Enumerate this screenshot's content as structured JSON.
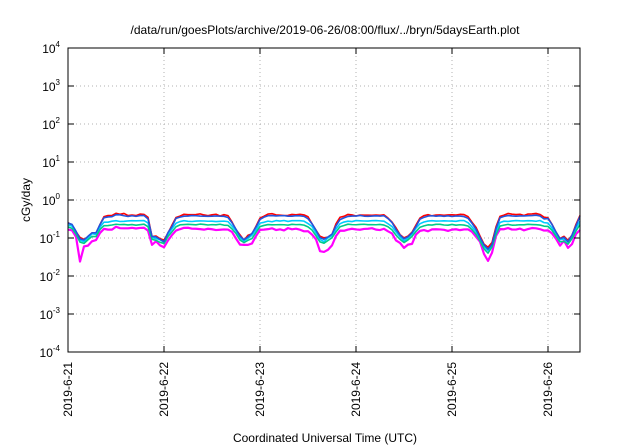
{
  "chart_data": {
    "type": "line",
    "title": "/data/run/goesPlots/archive/2019-06-26/08:00/flux/../bryn/5daysEarth.plot",
    "xlabel": "Coordinated Universal Time (UTC)",
    "ylabel": "cGy/day",
    "yscale": "log",
    "ylim": [
      0.0001,
      10000
    ],
    "xlim": [
      "2019-06-21 00:00",
      "2019-06-26 08:00"
    ],
    "grid": true,
    "legend": "none",
    "y_ticks": [
      {
        "value": 0.0001,
        "base": "10",
        "exp": "-4"
      },
      {
        "value": 0.001,
        "base": "10",
        "exp": "-3"
      },
      {
        "value": 0.01,
        "base": "10",
        "exp": "-2"
      },
      {
        "value": 0.1,
        "base": "10",
        "exp": "-1"
      },
      {
        "value": 1,
        "base": "10",
        "exp": "0"
      },
      {
        "value": 10,
        "base": "10",
        "exp": "1"
      },
      {
        "value": 100,
        "base": "10",
        "exp": "2"
      },
      {
        "value": 1000,
        "base": "10",
        "exp": "3"
      },
      {
        "value": 10000,
        "base": "10",
        "exp": "4"
      }
    ],
    "x_ticks": [
      "2019-6-21",
      "2019-6-22",
      "2019-6-23",
      "2019-6-24",
      "2019-6-25",
      "2019-6-26"
    ],
    "x": [
      "2019-06-21 00:00",
      "2019-06-21 01:00",
      "2019-06-21 02:00",
      "2019-06-21 03:00",
      "2019-06-21 04:00",
      "2019-06-21 05:00",
      "2019-06-21 06:00",
      "2019-06-21 07:00",
      "2019-06-21 08:00",
      "2019-06-21 09:00",
      "2019-06-21 10:00",
      "2019-06-21 11:00",
      "2019-06-21 12:00",
      "2019-06-21 13:00",
      "2019-06-21 14:00",
      "2019-06-21 15:00",
      "2019-06-21 16:00",
      "2019-06-21 17:00",
      "2019-06-21 18:00",
      "2019-06-21 19:00",
      "2019-06-21 20:00",
      "2019-06-21 21:00",
      "2019-06-21 22:00",
      "2019-06-21 23:00",
      "2019-06-22 00:00",
      "2019-06-22 01:00",
      "2019-06-22 02:00",
      "2019-06-22 03:00",
      "2019-06-22 04:00",
      "2019-06-22 05:00",
      "2019-06-22 06:00",
      "2019-06-22 07:00",
      "2019-06-22 08:00",
      "2019-06-22 09:00",
      "2019-06-22 10:00",
      "2019-06-22 11:00",
      "2019-06-22 12:00",
      "2019-06-22 13:00",
      "2019-06-22 14:00",
      "2019-06-22 15:00",
      "2019-06-22 16:00",
      "2019-06-22 17:00",
      "2019-06-22 18:00",
      "2019-06-22 19:00",
      "2019-06-22 20:00",
      "2019-06-22 21:00",
      "2019-06-22 22:00",
      "2019-06-22 23:00",
      "2019-06-23 00:00",
      "2019-06-23 01:00",
      "2019-06-23 02:00",
      "2019-06-23 03:00",
      "2019-06-23 04:00",
      "2019-06-23 05:00",
      "2019-06-23 06:00",
      "2019-06-23 07:00",
      "2019-06-23 08:00",
      "2019-06-23 09:00",
      "2019-06-23 10:00",
      "2019-06-23 11:00",
      "2019-06-23 12:00",
      "2019-06-23 13:00",
      "2019-06-23 14:00",
      "2019-06-23 15:00",
      "2019-06-23 16:00",
      "2019-06-23 17:00",
      "2019-06-23 18:00",
      "2019-06-23 19:00",
      "2019-06-23 20:00",
      "2019-06-23 21:00",
      "2019-06-23 22:00",
      "2019-06-23 23:00",
      "2019-06-24 00:00",
      "2019-06-24 01:00",
      "2019-06-24 02:00",
      "2019-06-24 03:00",
      "2019-06-24 04:00",
      "2019-06-24 05:00",
      "2019-06-24 06:00",
      "2019-06-24 07:00",
      "2019-06-24 08:00",
      "2019-06-24 09:00",
      "2019-06-24 10:00",
      "2019-06-24 11:00",
      "2019-06-24 12:00",
      "2019-06-24 13:00",
      "2019-06-24 14:00",
      "2019-06-24 15:00",
      "2019-06-24 16:00",
      "2019-06-24 17:00",
      "2019-06-24 18:00",
      "2019-06-24 19:00",
      "2019-06-24 20:00",
      "2019-06-24 21:00",
      "2019-06-24 22:00",
      "2019-06-24 23:00",
      "2019-06-25 00:00",
      "2019-06-25 01:00",
      "2019-06-25 02:00",
      "2019-06-25 03:00",
      "2019-06-25 04:00",
      "2019-06-25 05:00",
      "2019-06-25 06:00",
      "2019-06-25 07:00",
      "2019-06-25 08:00",
      "2019-06-25 09:00",
      "2019-06-25 10:00",
      "2019-06-25 11:00",
      "2019-06-25 12:00",
      "2019-06-25 13:00",
      "2019-06-25 14:00",
      "2019-06-25 15:00",
      "2019-06-25 16:00",
      "2019-06-25 17:00",
      "2019-06-25 18:00",
      "2019-06-25 19:00",
      "2019-06-25 20:00",
      "2019-06-25 21:00",
      "2019-06-25 22:00",
      "2019-06-25 23:00",
      "2019-06-26 00:00",
      "2019-06-26 01:00",
      "2019-06-26 02:00",
      "2019-06-26 03:00",
      "2019-06-26 04:00",
      "2019-06-26 05:00",
      "2019-06-26 06:00",
      "2019-06-26 07:00",
      "2019-06-26 08:00"
    ],
    "series": [
      {
        "color": "#ff00ff",
        "values": [
          0.167,
          0.159,
          0.108,
          0.024,
          0.06,
          0.063,
          0.082,
          0.088,
          0.136,
          0.174,
          0.166,
          0.166,
          0.198,
          0.181,
          0.18,
          0.18,
          0.185,
          0.178,
          0.184,
          0.186,
          0.156,
          0.066,
          0.082,
          0.064,
          0.057,
          0.086,
          0.12,
          0.157,
          0.171,
          0.185,
          0.186,
          0.176,
          0.175,
          0.171,
          0.166,
          0.175,
          0.17,
          0.162,
          0.165,
          0.168,
          0.167,
          0.144,
          0.097,
          0.067,
          0.066,
          0.066,
          0.072,
          0.113,
          0.164,
          0.166,
          0.171,
          0.18,
          0.162,
          0.169,
          0.158,
          0.182,
          0.169,
          0.176,
          0.165,
          0.15,
          0.151,
          0.123,
          0.092,
          0.045,
          0.043,
          0.049,
          0.064,
          0.113,
          0.156,
          0.155,
          0.167,
          0.175,
          0.168,
          0.165,
          0.173,
          0.175,
          0.181,
          0.166,
          0.162,
          0.175,
          0.15,
          0.132,
          0.086,
          0.074,
          0.055,
          0.067,
          0.07,
          0.124,
          0.154,
          0.162,
          0.15,
          0.169,
          0.17,
          0.168,
          0.164,
          0.153,
          0.166,
          0.17,
          0.161,
          0.168,
          0.169,
          0.146,
          0.108,
          0.08,
          0.038,
          0.025,
          0.041,
          0.113,
          0.171,
          0.17,
          0.183,
          0.167,
          0.167,
          0.177,
          0.159,
          0.172,
          0.183,
          0.18,
          0.171,
          0.157,
          0.159,
          0.132,
          0.096,
          0.063,
          0.085,
          0.055,
          0.069,
          0.128,
          0.162
        ]
      },
      {
        "color": "#ff0000",
        "values": [
          0.254,
          0.217,
          0.146,
          0.103,
          0.092,
          0.108,
          0.136,
          0.126,
          0.227,
          0.365,
          0.389,
          0.392,
          0.446,
          0.42,
          0.443,
          0.389,
          0.402,
          0.389,
          0.426,
          0.416,
          0.352,
          0.109,
          0.113,
          0.096,
          0.088,
          0.135,
          0.218,
          0.347,
          0.376,
          0.421,
          0.41,
          0.412,
          0.413,
          0.432,
          0.404,
          0.388,
          0.409,
          0.422,
          0.38,
          0.413,
          0.388,
          0.264,
          0.166,
          0.121,
          0.088,
          0.118,
          0.128,
          0.204,
          0.335,
          0.374,
          0.427,
          0.438,
          0.406,
          0.4,
          0.389,
          0.393,
          0.417,
          0.409,
          0.42,
          0.406,
          0.362,
          0.237,
          0.161,
          0.111,
          0.101,
          0.105,
          0.124,
          0.236,
          0.351,
          0.372,
          0.418,
          0.406,
          0.38,
          0.402,
          0.399,
          0.398,
          0.397,
          0.402,
          0.397,
          0.407,
          0.336,
          0.262,
          0.185,
          0.123,
          0.101,
          0.112,
          0.142,
          0.219,
          0.336,
          0.388,
          0.411,
          0.383,
          0.403,
          0.405,
          0.396,
          0.406,
          0.407,
          0.401,
          0.419,
          0.414,
          0.365,
          0.26,
          0.191,
          0.113,
          0.069,
          0.057,
          0.076,
          0.197,
          0.37,
          0.4,
          0.442,
          0.424,
          0.414,
          0.42,
          0.392,
          0.427,
          0.431,
          0.443,
          0.416,
          0.353,
          0.341,
          0.23,
          0.143,
          0.097,
          0.111,
          0.087,
          0.118,
          0.229,
          0.393
        ]
      },
      {
        "color": "#00ccff",
        "values": [
          0.221,
          0.206,
          0.145,
          0.087,
          0.08,
          0.098,
          0.13,
          0.124,
          0.194,
          0.261,
          0.261,
          0.277,
          0.285,
          0.272,
          0.275,
          0.282,
          0.285,
          0.283,
          0.285,
          0.287,
          0.249,
          0.102,
          0.097,
          0.09,
          0.078,
          0.126,
          0.175,
          0.244,
          0.271,
          0.285,
          0.275,
          0.272,
          0.279,
          0.281,
          0.28,
          0.276,
          0.277,
          0.271,
          0.275,
          0.278,
          0.27,
          0.206,
          0.155,
          0.098,
          0.085,
          0.098,
          0.118,
          0.164,
          0.246,
          0.259,
          0.278,
          0.268,
          0.287,
          0.279,
          0.289,
          0.273,
          0.285,
          0.286,
          0.286,
          0.278,
          0.24,
          0.202,
          0.136,
          0.092,
          0.08,
          0.101,
          0.115,
          0.174,
          0.238,
          0.263,
          0.277,
          0.271,
          0.288,
          0.284,
          0.28,
          0.279,
          0.286,
          0.288,
          0.282,
          0.277,
          0.237,
          0.2,
          0.145,
          0.107,
          0.084,
          0.099,
          0.128,
          0.182,
          0.238,
          0.264,
          0.279,
          0.286,
          0.279,
          0.28,
          0.283,
          0.28,
          0.279,
          0.275,
          0.288,
          0.288,
          0.253,
          0.195,
          0.149,
          0.1,
          0.06,
          0.047,
          0.066,
          0.149,
          0.256,
          0.277,
          0.273,
          0.281,
          0.287,
          0.283,
          0.281,
          0.286,
          0.284,
          0.276,
          0.289,
          0.254,
          0.247,
          0.185,
          0.132,
          0.09,
          0.094,
          0.077,
          0.111,
          0.185,
          0.277
        ]
      },
      {
        "color": "#00cc88",
        "values": [
          0.196,
          0.179,
          0.126,
          0.078,
          0.072,
          0.09,
          0.11,
          0.109,
          0.168,
          0.211,
          0.213,
          0.22,
          0.23,
          0.225,
          0.227,
          0.221,
          0.226,
          0.217,
          0.224,
          0.231,
          0.198,
          0.092,
          0.087,
          0.077,
          0.072,
          0.11,
          0.146,
          0.198,
          0.222,
          0.226,
          0.229,
          0.226,
          0.222,
          0.232,
          0.228,
          0.22,
          0.225,
          0.222,
          0.23,
          0.218,
          0.215,
          0.174,
          0.131,
          0.088,
          0.076,
          0.087,
          0.097,
          0.14,
          0.2,
          0.214,
          0.226,
          0.222,
          0.223,
          0.224,
          0.223,
          0.218,
          0.229,
          0.225,
          0.226,
          0.218,
          0.196,
          0.162,
          0.114,
          0.079,
          0.073,
          0.086,
          0.102,
          0.145,
          0.198,
          0.213,
          0.231,
          0.225,
          0.223,
          0.227,
          0.23,
          0.224,
          0.224,
          0.223,
          0.227,
          0.219,
          0.198,
          0.164,
          0.119,
          0.092,
          0.076,
          0.089,
          0.11,
          0.149,
          0.192,
          0.208,
          0.222,
          0.219,
          0.229,
          0.229,
          0.22,
          0.217,
          0.227,
          0.217,
          0.223,
          0.219,
          0.207,
          0.167,
          0.126,
          0.084,
          0.052,
          0.04,
          0.058,
          0.123,
          0.206,
          0.218,
          0.228,
          0.218,
          0.219,
          0.223,
          0.222,
          0.229,
          0.226,
          0.224,
          0.219,
          0.205,
          0.202,
          0.16,
          0.112,
          0.079,
          0.082,
          0.069,
          0.096,
          0.154,
          0.226
        ]
      },
      {
        "color": "#2255dd",
        "values": [
          0.248,
          0.228,
          0.151,
          0.095,
          0.089,
          0.111,
          0.137,
          0.138,
          0.226,
          0.342,
          0.358,
          0.363,
          0.41,
          0.407,
          0.385,
          0.37,
          0.385,
          0.371,
          0.389,
          0.39,
          0.318,
          0.11,
          0.107,
          0.092,
          0.08,
          0.139,
          0.201,
          0.33,
          0.354,
          0.375,
          0.377,
          0.389,
          0.385,
          0.377,
          0.376,
          0.371,
          0.374,
          0.381,
          0.374,
          0.372,
          0.347,
          0.252,
          0.17,
          0.112,
          0.09,
          0.107,
          0.133,
          0.195,
          0.308,
          0.353,
          0.385,
          0.389,
          0.38,
          0.385,
          0.388,
          0.375,
          0.375,
          0.386,
          0.383,
          0.371,
          0.321,
          0.238,
          0.16,
          0.102,
          0.093,
          0.107,
          0.126,
          0.21,
          0.305,
          0.339,
          0.37,
          0.378,
          0.378,
          0.393,
          0.376,
          0.371,
          0.377,
          0.384,
          0.378,
          0.385,
          0.324,
          0.256,
          0.168,
          0.12,
          0.095,
          0.108,
          0.137,
          0.202,
          0.313,
          0.35,
          0.377,
          0.385,
          0.374,
          0.383,
          0.372,
          0.384,
          0.368,
          0.379,
          0.378,
          0.366,
          0.33,
          0.244,
          0.171,
          0.104,
          0.066,
          0.051,
          0.068,
          0.177,
          0.34,
          0.371,
          0.39,
          0.38,
          0.376,
          0.381,
          0.381,
          0.385,
          0.39,
          0.399,
          0.38,
          0.318,
          0.325,
          0.227,
          0.144,
          0.096,
          0.104,
          0.08,
          0.12,
          0.211,
          0.371
        ]
      }
    ]
  }
}
